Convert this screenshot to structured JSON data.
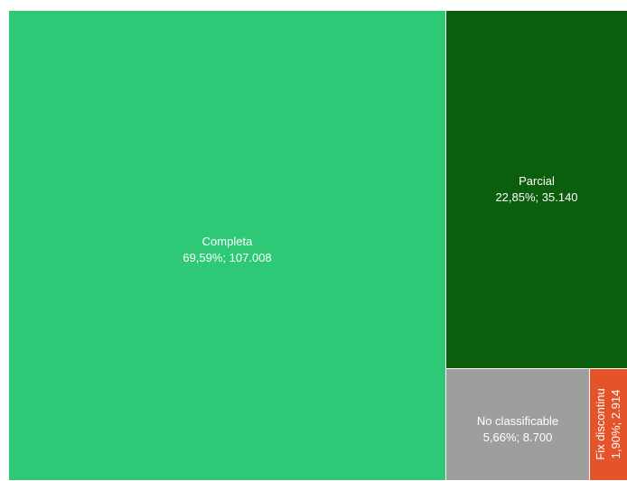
{
  "chart_data": {
    "type": "treemap",
    "title": "",
    "items": [
      {
        "name": "Completa",
        "percent_label": "69,59%; 107.008",
        "value": 107008,
        "percent": 69.59,
        "color": "#2ec977"
      },
      {
        "name": "Parcial",
        "percent_label": "22,85%; 35.140",
        "value": 35140,
        "percent": 22.85,
        "color": "#0b5e0b"
      },
      {
        "name": "No classificable",
        "percent_label": "5,66%; 8.700",
        "value": 8700,
        "percent": 5.66,
        "color": "#9e9e9e"
      },
      {
        "name": "Fix discontinu",
        "percent_label": "1,90%; 2.914",
        "value": 2914,
        "percent": 1.9,
        "color": "#e4532a"
      }
    ]
  }
}
